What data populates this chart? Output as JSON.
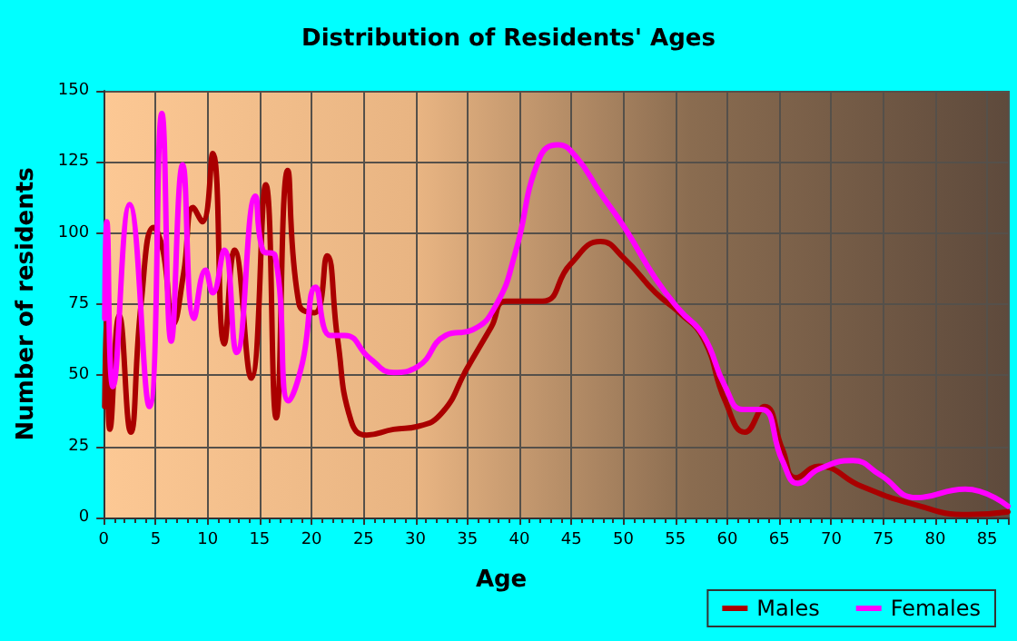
{
  "chart_data": {
    "type": "line",
    "title": "Distribution of Residents' Ages",
    "xlabel": "Age",
    "ylabel": "Number of residents",
    "xlim": [
      0,
      87
    ],
    "xticks": [
      0,
      5,
      10,
      15,
      20,
      25,
      30,
      35,
      40,
      45,
      50,
      55,
      60,
      65,
      70,
      75,
      80,
      85
    ],
    "ylim": [
      0,
      150
    ],
    "yticks": [
      0,
      25,
      50,
      75,
      100,
      125,
      150
    ],
    "grid": true,
    "legend": "bottom right",
    "marker": "none",
    "line_style": "solid",
    "series": [
      {
        "name": "Males",
        "color": "#aa0000",
        "x": [
          0.1,
          0.3,
          0.6,
          1.5,
          2.6,
          3.6,
          4.8,
          5.7,
          6.7,
          7.7,
          8.6,
          9.5,
          10.5,
          11.6,
          12.6,
          14.2,
          15.6,
          16.6,
          17.7,
          18.8,
          20.3,
          21.5,
          22.5,
          23.8,
          25.3,
          27.9,
          30.2,
          32.6,
          34.9,
          37.3,
          38.7,
          42.2,
          44.9,
          47.8,
          50.1,
          53.1,
          55.4,
          57.7,
          59.8,
          61.7,
          63.6,
          65.3,
          66.6,
          68.8,
          72.9,
          77.6,
          83.2,
          87
        ],
        "values": [
          39,
          69,
          31,
          71,
          30,
          75,
          102,
          94,
          68,
          86,
          109,
          104,
          128,
          61,
          94,
          49,
          117,
          35,
          122,
          75,
          72,
          92,
          63,
          34,
          29,
          31,
          32,
          37,
          52,
          67,
          76,
          76,
          89,
          97,
          91,
          79,
          72,
          63,
          41,
          30,
          39,
          24,
          14,
          18,
          11,
          5,
          1,
          2
        ]
      },
      {
        "name": "Females",
        "color": "#ff00ff",
        "x": [
          0.1,
          0.3,
          0.9,
          2.5,
          4.4,
          5.6,
          6.5,
          7.6,
          8.7,
          9.8,
          10.5,
          11.6,
          12.8,
          14.6,
          15.3,
          16.5,
          17.8,
          19.1,
          20.4,
          21.8,
          23.2,
          25.6,
          27.9,
          30.2,
          32.9,
          35.5,
          37.8,
          39.6,
          41.9,
          43.7,
          45.4,
          47.8,
          50.1,
          53.1,
          55.4,
          57.7,
          59.8,
          61.5,
          63.3,
          65.3,
          66.8,
          68.8,
          72.1,
          74.7,
          78.2,
          82.9,
          87
        ],
        "values": [
          70,
          104,
          46,
          110,
          39,
          142,
          62,
          124,
          70,
          87,
          79,
          94,
          58,
          113,
          94,
          92,
          41,
          54,
          81,
          64,
          64,
          56,
          51,
          53,
          64,
          66,
          75,
          93,
          126,
          131,
          127,
          114,
          102,
          84,
          73,
          64,
          46,
          38,
          38,
          20,
          12,
          17,
          20,
          15,
          7,
          10,
          4
        ]
      }
    ]
  }
}
